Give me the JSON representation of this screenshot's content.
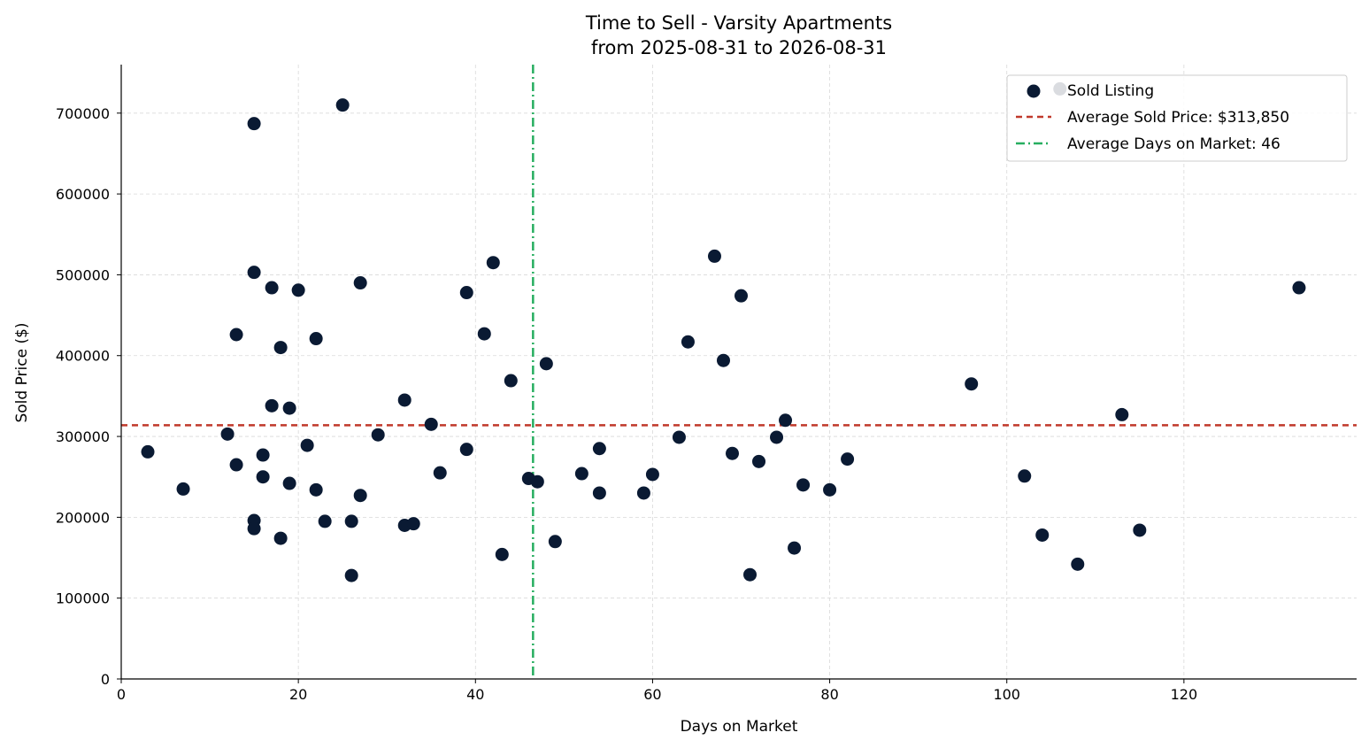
{
  "chart_data": {
    "type": "scatter",
    "title": "Time to Sell - Varsity Apartments",
    "subtitle": "from 2025-08-31 to 2026-08-31",
    "xlabel": "Days on Market",
    "ylabel": "Sold Price ($)",
    "xlim": [
      0,
      139.5
    ],
    "ylim": [
      0,
      760000
    ],
    "xticks": [
      0,
      20,
      40,
      60,
      80,
      100,
      120
    ],
    "yticks": [
      0,
      100000,
      200000,
      300000,
      400000,
      500000,
      600000,
      700000
    ],
    "grid": true,
    "legend_position": "top-right",
    "colors": {
      "points": "#0a1a33",
      "avg_price_line": "#c0392b",
      "avg_days_line": "#27ae60",
      "grid": "#d9d9d9"
    },
    "series": [
      {
        "name": "Sold Listing",
        "points": [
          [
            3,
            281000
          ],
          [
            7,
            235000
          ],
          [
            12,
            303000
          ],
          [
            13,
            426000
          ],
          [
            13,
            265000
          ],
          [
            15,
            687000
          ],
          [
            15,
            503000
          ],
          [
            15,
            196000
          ],
          [
            15,
            186000
          ],
          [
            16,
            277000
          ],
          [
            16,
            250000
          ],
          [
            17,
            484000
          ],
          [
            17,
            338000
          ],
          [
            18,
            410000
          ],
          [
            18,
            174000
          ],
          [
            19,
            335000
          ],
          [
            19,
            242000
          ],
          [
            20,
            481000
          ],
          [
            21,
            289000
          ],
          [
            22,
            421000
          ],
          [
            22,
            234000
          ],
          [
            23,
            195000
          ],
          [
            25,
            710000
          ],
          [
            26,
            195000
          ],
          [
            26,
            128000
          ],
          [
            27,
            490000
          ],
          [
            27,
            227000
          ],
          [
            29,
            302000
          ],
          [
            32,
            345000
          ],
          [
            32,
            190000
          ],
          [
            33,
            192000
          ],
          [
            35,
            315000
          ],
          [
            36,
            255000
          ],
          [
            39,
            478000
          ],
          [
            39,
            284000
          ],
          [
            41,
            427000
          ],
          [
            42,
            515000
          ],
          [
            43,
            154000
          ],
          [
            44,
            369000
          ],
          [
            46,
            248000
          ],
          [
            47,
            244000
          ],
          [
            48,
            390000
          ],
          [
            49,
            170000
          ],
          [
            52,
            254000
          ],
          [
            54,
            285000
          ],
          [
            54,
            230000
          ],
          [
            59,
            230000
          ],
          [
            60,
            253000
          ],
          [
            63,
            299000
          ],
          [
            64,
            417000
          ],
          [
            67,
            523000
          ],
          [
            68,
            394000
          ],
          [
            69,
            279000
          ],
          [
            70,
            474000
          ],
          [
            71,
            129000
          ],
          [
            72,
            269000
          ],
          [
            74,
            299000
          ],
          [
            75,
            320000
          ],
          [
            76,
            162000
          ],
          [
            77,
            240000
          ],
          [
            80,
            234000
          ],
          [
            82,
            272000
          ],
          [
            96,
            365000
          ],
          [
            102,
            251000
          ],
          [
            104,
            178000
          ],
          [
            108,
            142000
          ],
          [
            113,
            327000
          ],
          [
            115,
            184000
          ],
          [
            133,
            484000
          ]
        ]
      }
    ],
    "reference_lines": {
      "avg_price": {
        "label": "Average Sold Price: $313,850",
        "value": 313850
      },
      "avg_days": {
        "label": "Average Days on Market: 46",
        "value": 46.5
      }
    },
    "legend_ghost_marker": [
      106,
      730000
    ]
  }
}
